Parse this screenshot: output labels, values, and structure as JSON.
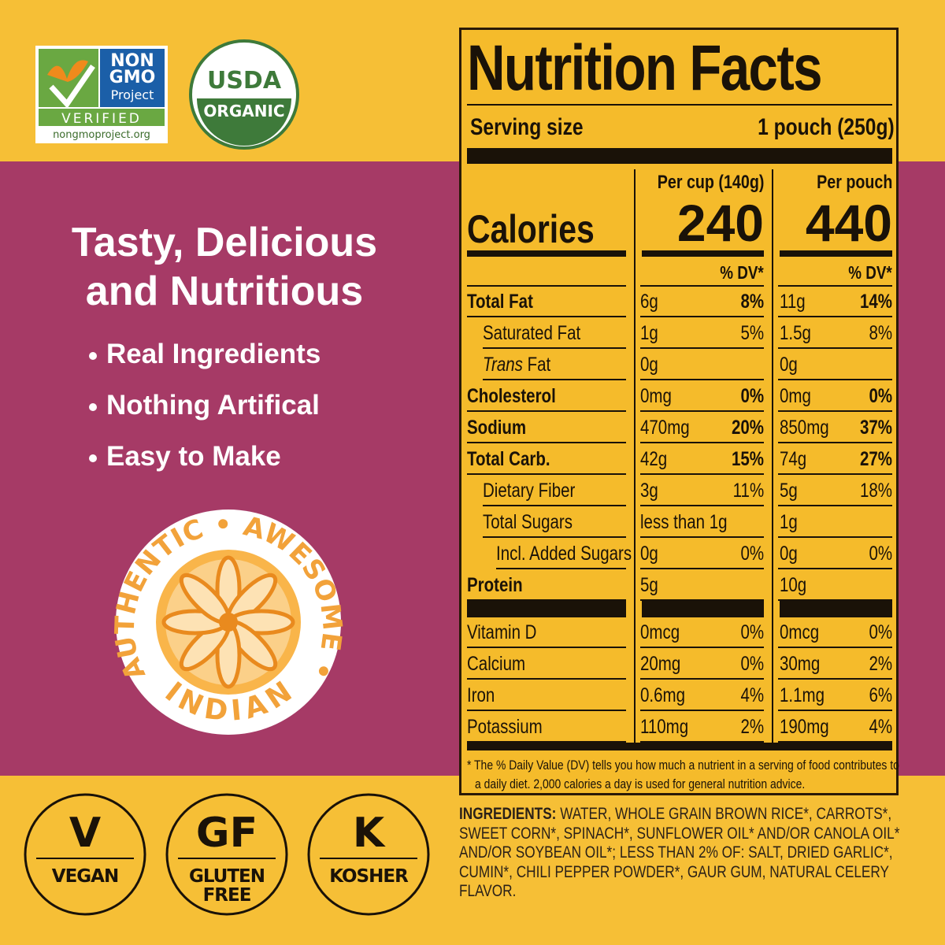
{
  "badges": {
    "non_gmo": {
      "lines": [
        "NON",
        "GMO",
        "Project"
      ],
      "verified": "VERIFIED",
      "url": "nongmoproject.org"
    },
    "usda": {
      "top": "USDA",
      "bottom": "ORGANIC"
    }
  },
  "headline": [
    "Tasty, Delicious",
    "and Nutritious"
  ],
  "bullets": [
    "Real Ingredients",
    "Nothing Artifical",
    "Easy to Make"
  ],
  "seal": {
    "top": "AUTHENTIC • AWESOME •",
    "bottom": "INDIAN"
  },
  "diet_icons": [
    {
      "symbol": "V",
      "label": [
        "VEGAN"
      ]
    },
    {
      "symbol": "GF",
      "label": [
        "GLUTEN",
        "FREE"
      ]
    },
    {
      "symbol": "K",
      "label": [
        "KOSHER"
      ]
    }
  ],
  "nutrition": {
    "title": "Nutrition Facts",
    "serving_label": "Serving size",
    "serving_value": "1 pouch (250g)",
    "column_headers": [
      "Per cup (140g)",
      "Per pouch"
    ],
    "calories_label": "Calories",
    "calories": [
      240,
      440
    ],
    "dv_header": "% DV*",
    "rows": [
      {
        "kind": "main",
        "name": "Total Fat",
        "cup": [
          "6g",
          "8%"
        ],
        "pouch": [
          "11g",
          "14%"
        ]
      },
      {
        "kind": "sub",
        "name": "Saturated Fat",
        "cup": [
          "1g",
          "5%"
        ],
        "pouch": [
          "1.5g",
          "8%"
        ]
      },
      {
        "kind": "sub",
        "name_italic": "Trans",
        "name": "Fat",
        "cup": [
          "0g"
        ],
        "pouch": [
          "0g"
        ]
      },
      {
        "kind": "main",
        "name": "Cholesterol",
        "cup": [
          "0mg",
          "0%"
        ],
        "pouch": [
          "0mg",
          "0%"
        ]
      },
      {
        "kind": "main",
        "name": "Sodium",
        "cup": [
          "470mg",
          "20%"
        ],
        "pouch": [
          "850mg",
          "37%"
        ]
      },
      {
        "kind": "main",
        "name": "Total Carb.",
        "cup": [
          "42g",
          "15%"
        ],
        "pouch": [
          "74g",
          "27%"
        ]
      },
      {
        "kind": "sub",
        "name": "Dietary Fiber",
        "cup": [
          "3g",
          "11%"
        ],
        "pouch": [
          "5g",
          "18%"
        ]
      },
      {
        "kind": "sub",
        "name": "Total Sugars",
        "cup": [
          "less than 1g"
        ],
        "pouch": [
          "1g"
        ]
      },
      {
        "kind": "subsub",
        "name": "Incl. Added Sugars",
        "cup": [
          "0g",
          "0%"
        ],
        "pouch": [
          "0g",
          "0%"
        ]
      },
      {
        "kind": "main",
        "name": "Protein",
        "cup": [
          "5g"
        ],
        "pouch": [
          "10g"
        ]
      }
    ],
    "vitamins": [
      {
        "name": "Vitamin D",
        "cup": [
          "0mcg",
          "0%"
        ],
        "pouch": [
          "0mcg",
          "0%"
        ]
      },
      {
        "name": "Calcium",
        "cup": [
          "20mg",
          "0%"
        ],
        "pouch": [
          "30mg",
          "2%"
        ]
      },
      {
        "name": "Iron",
        "cup": [
          "0.6mg",
          "4%"
        ],
        "pouch": [
          "1.1mg",
          "6%"
        ]
      },
      {
        "name": "Potassium",
        "cup": [
          "110mg",
          "2%"
        ],
        "pouch": [
          "190mg",
          "4%"
        ]
      }
    ],
    "footnote": [
      "* The % Daily Value (DV) tells you how much a nutrient in a serving of food contributes to",
      "a daily diet. 2,000 calories a day is used for general nutrition advice."
    ]
  },
  "ingredients": {
    "label": "INGREDIENTS:",
    "text": "WATER, WHOLE GRAIN BROWN RICE*, CARROTS*, SWEET CORN*, SPINACH*, SUNFLOWER OIL* AND/OR CANOLA OIL* AND/OR SOYBEAN OIL*; LESS THAN 2% OF: SALT, DRIED GARLIC*, CUMIN*, CHILI PEPPER POWDER*, GAUR GUM, NATURAL CELERY FLAVOR."
  }
}
